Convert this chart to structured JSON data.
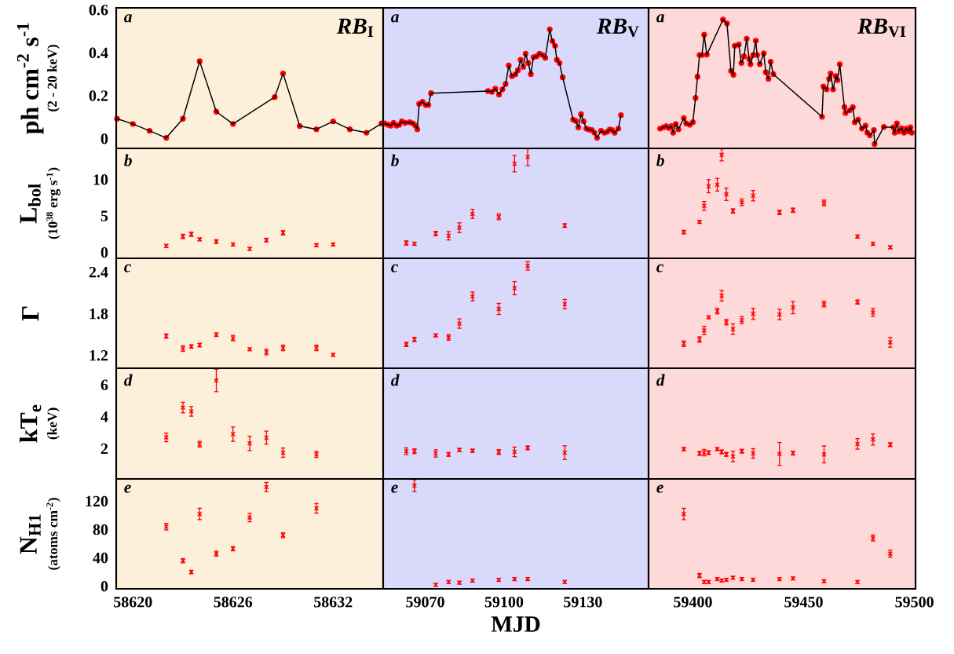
{
  "chart_data": [
    {
      "type": "line",
      "title": "*RB*$_{I}$",
      "ylabel": "ph cm$^{-2}$ s$^{-1}$",
      "annotations": [
        "a",
        "(2 - 20 keV)"
      ],
      "tick_labels": "y",
      "xlim": [
        58619,
        58635
      ],
      "xticks": [
        58620,
        58626,
        58632
      ],
      "ylim": [
        -0.045,
        0.61
      ],
      "yticks": [
        0,
        0.2,
        0.4,
        0.6
      ],
      "bands": [
        {
          "axis": "x",
          "from": 58619,
          "to": 58635,
          "color": "#fdf0da"
        }
      ],
      "x": [
        58619.05,
        58620,
        58621,
        58622,
        58623,
        58624,
        58625,
        58626,
        58628.5,
        58629,
        58630,
        58631,
        58632,
        58633,
        58634,
        58634.9
      ],
      "series": [
        {
          "type": "line",
          "color": "#000000",
          "marker": "none",
          "line_style": "solid",
          "values": [
            0.093,
            0.069,
            0.037,
            0.004,
            0.093,
            0.361,
            0.126,
            0.069,
            0.194,
            0.304,
            0.059,
            0.044,
            0.081,
            0.044,
            0.028,
            0.071
          ]
        },
        {
          "type": "scatter",
          "color": "#ff0000",
          "marker": "circle",
          "values": [
            0.093,
            0.069,
            0.037,
            0.004,
            0.093,
            0.361,
            0.126,
            0.069,
            0.194,
            0.304,
            0.059,
            0.044,
            0.081,
            0.044,
            0.028,
            0.071
          ]
        }
      ]
    },
    {
      "type": "line",
      "title": "*RB*$_{V}$",
      "annotations": [
        "a"
      ],
      "tick_labels": false,
      "xlim": [
        59054,
        59155
      ],
      "xticks": [
        59070,
        59100,
        59130
      ],
      "ylim": [
        -0.045,
        0.61
      ],
      "yticks": [
        0,
        0.2,
        0.4,
        0.6
      ],
      "bands": [
        {
          "axis": "x",
          "from": 59054,
          "to": 59155,
          "color": "#d9d9fb"
        }
      ],
      "x": [
        59054.5,
        59055.9,
        59056.9,
        59057.9,
        59059.1,
        59060.1,
        59061.1,
        59062.3,
        59064.1,
        59065.3,
        59066.3,
        59067.0,
        59067.7,
        59069.0,
        59070.2,
        59071.2,
        59072.2,
        59093.9,
        59095.4,
        59096.7,
        59098.1,
        59099.4,
        59100.6,
        59101.8,
        59103.0,
        59104.3,
        59105.3,
        59106.3,
        59107.3,
        59108.2,
        59109.2,
        59110.2,
        59111.2,
        59112.4,
        59113.5,
        59114.7,
        59115.7,
        59117.4,
        59118.4,
        59119.4,
        59120.1,
        59121.1,
        59122.3,
        59126.3,
        59127.3,
        59128.3,
        59129.3,
        59130.3,
        59131.3,
        59132.3,
        59133.4,
        59134.4,
        59135.4,
        59136.9,
        59138.2,
        59139.2,
        59140.2,
        59141.1,
        59142.1,
        59143.5,
        59144.5
      ],
      "series": [
        {
          "type": "line",
          "color": "#000000",
          "marker": "none",
          "line_style": "solid",
          "values": [
            0.071,
            0.065,
            0.061,
            0.074,
            0.061,
            0.065,
            0.081,
            0.074,
            0.077,
            0.071,
            0.061,
            0.044,
            0.163,
            0.172,
            0.157,
            0.157,
            0.212,
            0.222,
            0.218,
            0.233,
            0.206,
            0.23,
            0.255,
            0.341,
            0.292,
            0.3,
            0.319,
            0.368,
            0.335,
            0.396,
            0.353,
            0.301,
            0.38,
            0.384,
            0.396,
            0.39,
            0.377,
            0.51,
            0.455,
            0.433,
            0.368,
            0.353,
            0.286,
            0.089,
            0.083,
            0.053,
            0.114,
            0.081,
            0.047,
            0.043,
            0.04,
            0.028,
            0.004,
            0.037,
            0.028,
            0.032,
            0.043,
            0.04,
            0.028,
            0.047,
            0.11
          ]
        },
        {
          "type": "scatter",
          "color": "#ff0000",
          "marker": "circle",
          "values": [
            0.071,
            0.065,
            0.061,
            0.074,
            0.061,
            0.065,
            0.081,
            0.074,
            0.077,
            0.071,
            0.061,
            0.044,
            0.163,
            0.172,
            0.157,
            0.157,
            0.212,
            0.222,
            0.218,
            0.233,
            0.206,
            0.23,
            0.255,
            0.341,
            0.292,
            0.3,
            0.319,
            0.368,
            0.335,
            0.396,
            0.353,
            0.301,
            0.38,
            0.384,
            0.396,
            0.39,
            0.377,
            0.51,
            0.455,
            0.433,
            0.368,
            0.353,
            0.286,
            0.089,
            0.083,
            0.053,
            0.114,
            0.081,
            0.047,
            0.043,
            0.04,
            0.028,
            0.004,
            0.037,
            0.028,
            0.032,
            0.043,
            0.04,
            0.028,
            0.047,
            0.11
          ]
        }
      ]
    },
    {
      "type": "line",
      "title": "*RB*$_{VI}$",
      "annotations": [
        "a"
      ],
      "tick_labels": false,
      "xlim": [
        59380,
        59500.5
      ],
      "xticks": [
        59400,
        59450,
        59500
      ],
      "ylim": [
        -0.045,
        0.61
      ],
      "yticks": [
        0,
        0.2,
        0.4,
        0.6
      ],
      "bands": [
        {
          "axis": "x",
          "from": 59380,
          "to": 59500.5,
          "color": "#fdd9d9"
        }
      ],
      "x": [
        59385.2,
        59386.7,
        59387.9,
        59389.1,
        59390.3,
        59391.1,
        59392.3,
        59393.5,
        59395.9,
        59397.0,
        59398.6,
        59400.0,
        59401.2,
        59402.1,
        59403.0,
        59404.1,
        59405.1,
        59406.3,
        59413.6,
        59415.4,
        59417.2,
        59418.3,
        59418.9,
        59420.7,
        59421.9,
        59423.1,
        59424.3,
        59425.4,
        59426.0,
        59427.2,
        59428.4,
        59429.0,
        59430.2,
        59432.0,
        59432.9,
        59434.1,
        59435.1,
        59436.3,
        59458.3,
        59458.9,
        59460.4,
        59461.5,
        59462.2,
        59463.3,
        59464.5,
        59465.3,
        59466.3,
        59468.4,
        59468.9,
        59470.8,
        59472.2,
        59473.1,
        59474.6,
        59476.3,
        59477.9,
        59478.7,
        59479.9,
        59481.7,
        59482.0,
        59486.2,
        59490.5,
        59491.1,
        59492.1,
        59492.9,
        59494.1,
        59495.3,
        59496.4,
        59497.3,
        59498.2,
        59498.8
      ],
      "series": [
        {
          "type": "line",
          "color": "#000000",
          "marker": "none",
          "line_style": "solid",
          "values": [
            0.047,
            0.053,
            0.059,
            0.05,
            0.059,
            0.028,
            0.069,
            0.044,
            0.096,
            0.071,
            0.065,
            0.077,
            0.19,
            0.289,
            0.39,
            0.39,
            0.485,
            0.392,
            0.555,
            0.537,
            0.316,
            0.298,
            0.433,
            0.439,
            0.353,
            0.384,
            0.466,
            0.371,
            0.347,
            0.39,
            0.457,
            0.39,
            0.347,
            0.398,
            0.31,
            0.279,
            0.359,
            0.301,
            0.102,
            0.243,
            0.23,
            0.279,
            0.304,
            0.23,
            0.292,
            0.273,
            0.347,
            0.147,
            0.12,
            0.132,
            0.147,
            0.077,
            0.089,
            0.047,
            0.061,
            0.028,
            0.016,
            0.04,
            -0.025,
            0.055,
            0.053,
            0.028,
            0.071,
            0.034,
            0.049,
            0.028,
            0.047,
            0.034,
            0.053,
            0.028
          ]
        },
        {
          "type": "scatter",
          "color": "#ff0000",
          "marker": "circle",
          "values": [
            0.047,
            0.053,
            0.059,
            0.05,
            0.059,
            0.028,
            0.069,
            0.044,
            0.096,
            0.071,
            0.065,
            0.077,
            0.19,
            0.289,
            0.39,
            0.39,
            0.485,
            0.392,
            0.555,
            0.537,
            0.316,
            0.298,
            0.433,
            0.439,
            0.353,
            0.384,
            0.466,
            0.371,
            0.347,
            0.39,
            0.457,
            0.39,
            0.347,
            0.398,
            0.31,
            0.279,
            0.359,
            0.301,
            0.102,
            0.243,
            0.23,
            0.279,
            0.304,
            0.23,
            0.292,
            0.273,
            0.347,
            0.147,
            0.12,
            0.132,
            0.147,
            0.077,
            0.089,
            0.047,
            0.061,
            0.028,
            0.016,
            0.04,
            -0.025,
            0.055,
            0.053,
            0.028,
            0.071,
            0.034,
            0.049,
            0.028,
            0.047,
            0.034,
            0.053,
            0.028
          ]
        }
      ]
    },
    {
      "type": "scatter",
      "marker": "cross",
      "ylabel": "L$_{bol}$",
      "annotations": [
        "b",
        "(10$^{38}$ erg s$^{-1}$)"
      ],
      "tick_labels": "y",
      "xlim": [
        58619,
        58635
      ],
      "xticks": [
        58620,
        58626,
        58632
      ],
      "ylim": [
        -0.8,
        14.3
      ],
      "yticks": [
        0,
        5,
        10
      ],
      "bands": [
        {
          "axis": "x",
          "from": 58619,
          "to": 58635,
          "color": "#fdf0da"
        }
      ],
      "x": [
        58622,
        58623,
        58623.5,
        58624,
        58625,
        58626,
        58627,
        58628,
        58629,
        58631,
        58632
      ],
      "series": [
        {
          "color": "#ff0000",
          "values": [
            0.9,
            2.2,
            2.5,
            1.8,
            1.5,
            1.1,
            0.5,
            1.7,
            2.7,
            1.0,
            1.1
          ],
          "errors": [
            0.2,
            0.3,
            0.3,
            0.2,
            0.25,
            0.2,
            0.2,
            0.25,
            0.3,
            0.2,
            0.2
          ]
        }
      ]
    },
    {
      "type": "scatter",
      "marker": "cross",
      "annotations": [
        "b"
      ],
      "tick_labels": false,
      "xlim": [
        59054,
        59155
      ],
      "xticks": [
        59070,
        59100,
        59130
      ],
      "ylim": [
        -0.8,
        14.3
      ],
      "yticks": [
        0,
        5,
        10
      ],
      "bands": [
        {
          "axis": "x",
          "from": 59054,
          "to": 59155,
          "color": "#d9d9fb"
        }
      ],
      "x": [
        59062.8,
        59065.9,
        59074.0,
        59078.9,
        59083.0,
        59088.0,
        59098.0,
        59104.0,
        59109.0,
        59123.1
      ],
      "series": [
        {
          "color": "#ff0000",
          "values": [
            1.3,
            1.2,
            2.6,
            2.3,
            3.4,
            5.3,
            4.9,
            12.2,
            13.1,
            3.7
          ],
          "errors": [
            0.3,
            0.2,
            0.3,
            0.58,
            0.67,
            0.63,
            0.4,
            1.12,
            1.15,
            0.25
          ]
        }
      ]
    },
    {
      "type": "scatter",
      "marker": "cross",
      "annotations": [
        "b"
      ],
      "tick_labels": false,
      "xlim": [
        59380,
        59500.5
      ],
      "xticks": [
        59400,
        59450,
        59500
      ],
      "ylim": [
        -0.8,
        14.3
      ],
      "yticks": [
        0,
        5,
        10
      ],
      "bands": [
        {
          "axis": "x",
          "from": 59380,
          "to": 59500.5,
          "color": "#fdd9d9"
        }
      ],
      "x": [
        59395.9,
        59403.0,
        59405.1,
        59407.1,
        59411.0,
        59413.0,
        59415.1,
        59418.1,
        59422.1,
        59427.2,
        59439.1,
        59445.2,
        59459.2,
        59474.3,
        59481.3,
        59489.1
      ],
      "series": [
        {
          "color": "#ff0000",
          "values": [
            2.8,
            4.2,
            6.4,
            9.1,
            9.3,
            13.4,
            8.0,
            5.7,
            6.9,
            7.8,
            5.5,
            5.8,
            6.8,
            2.2,
            1.2,
            0.7
          ],
          "errors": [
            0.25,
            0.2,
            0.6,
            0.9,
            0.87,
            0.81,
            0.85,
            0.3,
            0.45,
            0.7,
            0.3,
            0.3,
            0.4,
            0.2,
            0.2,
            0.2
          ]
        }
      ]
    },
    {
      "type": "scatter",
      "marker": "cross",
      "ylabel": "Γ",
      "annotations": [
        "c"
      ],
      "tick_labels": "y",
      "xlim": [
        58619,
        58635
      ],
      "xticks": [
        58620,
        58626,
        58632
      ],
      "ylim": [
        1.017,
        2.6
      ],
      "yticks": [
        1.2,
        1.8,
        2.4
      ],
      "bands": [
        {
          "axis": "x",
          "from": 58619,
          "to": 58635,
          "color": "#fdf0da"
        }
      ],
      "x": [
        58622,
        58623,
        58623.5,
        58624,
        58625,
        58626,
        58627,
        58628,
        58629,
        58631,
        58632
      ],
      "series": [
        {
          "color": "#ff0000",
          "values": [
            1.48,
            1.3,
            1.33,
            1.35,
            1.5,
            1.45,
            1.29,
            1.25,
            1.31,
            1.31,
            1.21
          ],
          "errors": [
            0.03,
            0.04,
            0.025,
            0.025,
            0.025,
            0.04,
            0.02,
            0.04,
            0.04,
            0.04,
            0.02
          ]
        }
      ]
    },
    {
      "type": "scatter",
      "marker": "cross",
      "annotations": [
        "c"
      ],
      "tick_labels": false,
      "xlim": [
        59054,
        59155
      ],
      "xticks": [
        59070,
        59100,
        59130
      ],
      "ylim": [
        1.017,
        2.6
      ],
      "yticks": [
        1.2,
        1.8,
        2.4
      ],
      "bands": [
        {
          "axis": "x",
          "from": 59054,
          "to": 59155,
          "color": "#d9d9fb"
        }
      ],
      "x": [
        59062.8,
        59065.9,
        59074.0,
        59078.9,
        59083.0,
        59088.0,
        59098.0,
        59104.0,
        59109.0,
        59123.1
      ],
      "series": [
        {
          "color": "#ff0000",
          "values": [
            1.36,
            1.43,
            1.49,
            1.46,
            1.66,
            2.05,
            1.87,
            2.17,
            2.49,
            1.94
          ],
          "errors": [
            0.03,
            0.03,
            0.02,
            0.04,
            0.067,
            0.063,
            0.08,
            0.095,
            0.06,
            0.067
          ]
        }
      ]
    },
    {
      "type": "scatter",
      "marker": "cross",
      "annotations": [
        "c"
      ],
      "tick_labels": false,
      "xlim": [
        59380,
        59500.5
      ],
      "xticks": [
        59400,
        59450,
        59500
      ],
      "ylim": [
        1.017,
        2.6
      ],
      "yticks": [
        1.2,
        1.8,
        2.4
      ],
      "bands": [
        {
          "axis": "x",
          "from": 59380,
          "to": 59500.5,
          "color": "#fdd9d9"
        }
      ],
      "x": [
        59395.9,
        59403.0,
        59405.1,
        59407.1,
        59411.0,
        59413.0,
        59415.1,
        59418.1,
        59422.1,
        59427.2,
        59439.1,
        59445.2,
        59459.2,
        59474.3,
        59481.3,
        59489.1
      ],
      "series": [
        {
          "color": "#ff0000",
          "values": [
            1.37,
            1.43,
            1.56,
            1.75,
            1.84,
            2.06,
            1.68,
            1.58,
            1.71,
            1.8,
            1.79,
            1.89,
            1.94,
            1.97,
            1.82,
            1.39
          ],
          "errors": [
            0.04,
            0.04,
            0.06,
            0.02,
            0.04,
            0.076,
            0.04,
            0.076,
            0.05,
            0.08,
            0.076,
            0.088,
            0.04,
            0.03,
            0.057,
            0.07
          ]
        }
      ]
    },
    {
      "type": "scatter",
      "marker": "cross",
      "ylabel": "kT$_{e}$",
      "annotations": [
        "d",
        "(keV)"
      ],
      "tick_labels": "y",
      "xlim": [
        58619,
        58635
      ],
      "xticks": [
        58620,
        58626,
        58632
      ],
      "ylim": [
        0.1,
        7.05
      ],
      "yticks": [
        2,
        4,
        6
      ],
      "bands": [
        {
          "axis": "x",
          "from": 58619,
          "to": 58635,
          "color": "#fdf0da"
        }
      ],
      "x": [
        58622,
        58623,
        58623.5,
        58624,
        58625,
        58626,
        58627,
        58628,
        58629,
        58631
      ],
      "series": [
        {
          "color": "#ff0000",
          "values": [
            2.71,
            4.58,
            4.34,
            2.28,
            6.28,
            2.91,
            2.33,
            2.69,
            1.75,
            1.64
          ],
          "errors": [
            0.27,
            0.33,
            0.3,
            0.18,
            0.7,
            0.45,
            0.45,
            0.41,
            0.29,
            0.19
          ]
        }
      ]
    },
    {
      "type": "scatter",
      "marker": "cross",
      "annotations": [
        "d"
      ],
      "tick_labels": false,
      "xlim": [
        59054,
        59155
      ],
      "xticks": [
        59070,
        59100,
        59130
      ],
      "ylim": [
        0.1,
        7.05
      ],
      "yticks": [
        2,
        4,
        6
      ],
      "bands": [
        {
          "axis": "x",
          "from": 59054,
          "to": 59155,
          "color": "#d9d9fb"
        }
      ],
      "x": [
        59062.8,
        59065.9,
        59074.0,
        59078.9,
        59083.0,
        59088.0,
        59098.0,
        59104.0,
        59109.0,
        59123.1
      ],
      "series": [
        {
          "color": "#ff0000",
          "values": [
            1.84,
            1.84,
            1.7,
            1.64,
            1.92,
            1.87,
            1.79,
            1.8,
            2.05,
            1.75
          ],
          "errors": [
            0.21,
            0.15,
            0.23,
            0.12,
            0.1,
            0.1,
            0.15,
            0.3,
            0.12,
            0.43
          ]
        }
      ]
    },
    {
      "type": "scatter",
      "marker": "cross",
      "annotations": [
        "d"
      ],
      "tick_labels": false,
      "xlim": [
        59380,
        59500.5
      ],
      "xticks": [
        59400,
        59450,
        59500
      ],
      "ylim": [
        0.1,
        7.05
      ],
      "yticks": [
        2,
        4,
        6
      ],
      "bands": [
        {
          "axis": "x",
          "from": 59380,
          "to": 59500.5,
          "color": "#fdd9d9"
        }
      ],
      "x": [
        59395.9,
        59403.0,
        59405.1,
        59407.1,
        59411.0,
        59413.0,
        59415.1,
        59418.1,
        59422.1,
        59427.2,
        59439.1,
        59445.2,
        59459.2,
        59474.3,
        59481.3,
        59489.1
      ],
      "series": [
        {
          "color": "#ff0000",
          "values": [
            1.97,
            1.7,
            1.75,
            1.75,
            1.97,
            1.8,
            1.64,
            1.51,
            1.84,
            1.7,
            1.67,
            1.72,
            1.64,
            2.3,
            2.58,
            2.25
          ],
          "errors": [
            0.1,
            0.12,
            0.2,
            0.12,
            0.1,
            0.12,
            0.12,
            0.33,
            0.12,
            0.3,
            0.72,
            0.12,
            0.53,
            0.33,
            0.35,
            0.12
          ]
        }
      ]
    },
    {
      "type": "scatter",
      "marker": "cross",
      "ylabel": "N$_{H1}$",
      "annotations": [
        "e",
        "(atoms cm$^{-2}$)"
      ],
      "xlim": [
        58619,
        58635
      ],
      "xticks": [
        58620,
        58626,
        58632
      ],
      "ylim": [
        -3.7,
        151.5
      ],
      "yticks": [
        0,
        40,
        80,
        120
      ],
      "bands": [
        {
          "axis": "x",
          "from": 58619,
          "to": 58635,
          "color": "#fdf0da"
        }
      ],
      "x": [
        58622,
        58623,
        58623.5,
        58624,
        58625,
        58626,
        58627,
        58628,
        58629,
        58631
      ],
      "series": [
        {
          "color": "#ff0000",
          "values": [
            84,
            36,
            20,
            102,
            46,
            53,
            97,
            140,
            72,
            110
          ],
          "errors": [
            4.6,
            3,
            2.5,
            8,
            3.5,
            3,
            6,
            6.5,
            3.5,
            6.7
          ]
        }
      ]
    },
    {
      "type": "scatter",
      "marker": "cross",
      "xlabel": "MJD",
      "annotations": [
        "e"
      ],
      "tick_labels": "x",
      "xlim": [
        59054,
        59155
      ],
      "xticks": [
        59070,
        59100,
        59130
      ],
      "ylim": [
        -3.7,
        151.5
      ],
      "yticks": [
        0,
        40,
        80,
        120
      ],
      "bands": [
        {
          "axis": "x",
          "from": 59054,
          "to": 59155,
          "color": "#d9d9fb"
        }
      ],
      "x": [
        59065.9,
        59074.0,
        59078.9,
        59083.0,
        59088.0,
        59098.0,
        59104.0,
        59109.0,
        59123.1
      ],
      "series": [
        {
          "color": "#ff0000",
          "values": [
            142,
            2,
            6,
            5,
            8,
            9,
            10,
            10,
            6
          ],
          "errors": [
            8.3,
            2,
            2,
            2,
            2,
            2,
            2,
            2,
            2
          ]
        }
      ]
    },
    {
      "type": "scatter",
      "marker": "cross",
      "annotations": [
        "e"
      ],
      "tick_labels": "x",
      "xlim": [
        59380,
        59500.5
      ],
      "xticks": [
        59400,
        59450,
        59500
      ],
      "ylim": [
        -3.7,
        151.5
      ],
      "yticks": [
        0,
        40,
        80,
        120
      ],
      "bands": [
        {
          "axis": "x",
          "from": 59380,
          "to": 59500.5,
          "color": "#fdd9d9"
        }
      ],
      "x": [
        59395.9,
        59403.0,
        59405.1,
        59407.1,
        59411.0,
        59413.0,
        59415.1,
        59418.1,
        59422.1,
        59427.2,
        59439.1,
        59445.2,
        59459.2,
        59474.3,
        59481.3,
        59489.1
      ],
      "series": [
        {
          "color": "#ff0000",
          "values": [
            102,
            15,
            6,
            6,
            10,
            8,
            9,
            12,
            10,
            9,
            10,
            11,
            7,
            6,
            68,
            46
          ],
          "errors": [
            8,
            3,
            2,
            2,
            2,
            2,
            2,
            2,
            2,
            2,
            2,
            2,
            2,
            2,
            4.3,
            5
          ]
        }
      ]
    }
  ]
}
